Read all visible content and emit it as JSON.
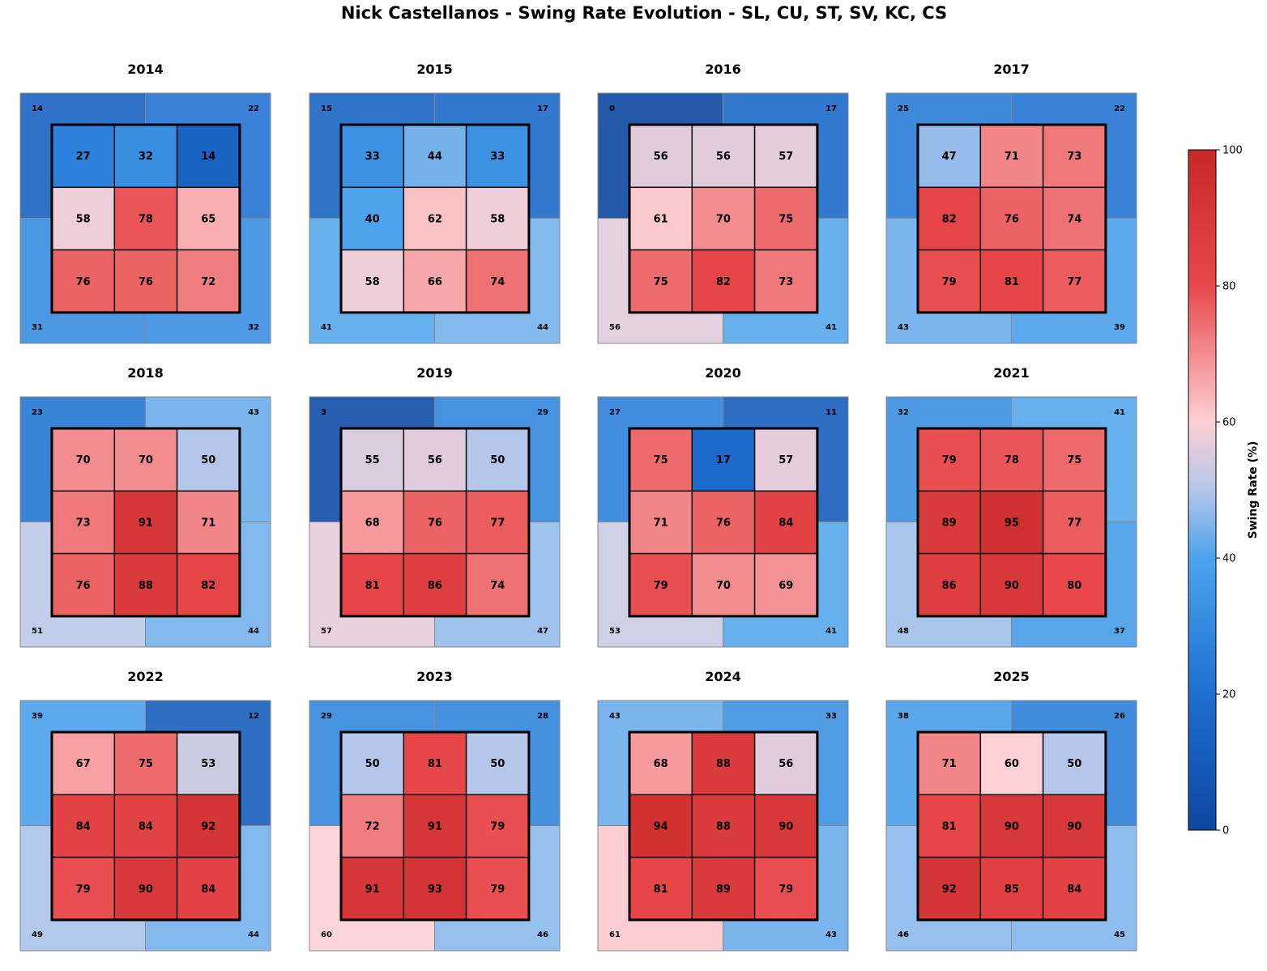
{
  "title": "Nick Castellanos - Swing Rate Evolution - SL, CU, ST, SV, KC, CS",
  "colorbar": {
    "label": "Swing Rate (%)",
    "ticks": [
      0,
      20,
      40,
      60,
      80,
      100
    ]
  },
  "chart_data": {
    "type": "heatmap",
    "value_range": [
      0,
      100
    ],
    "colors": {
      "low": "#0d47a1",
      "mid": "#f7f7f7",
      "high": "#c62828"
    },
    "panels": [
      {
        "year": "2014",
        "outer": [
          14,
          22,
          31,
          32
        ],
        "zone": [
          [
            27,
            32,
            14
          ],
          [
            58,
            78,
            65
          ],
          [
            76,
            76,
            72
          ]
        ]
      },
      {
        "year": "2015",
        "outer": [
          15,
          17,
          41,
          44
        ],
        "zone": [
          [
            33,
            44,
            33
          ],
          [
            40,
            62,
            58
          ],
          [
            58,
            66,
            74
          ]
        ]
      },
      {
        "year": "2016",
        "outer": [
          0,
          17,
          56,
          41
        ],
        "zone": [
          [
            56,
            56,
            57
          ],
          [
            61,
            70,
            75
          ],
          [
            75,
            82,
            73
          ]
        ]
      },
      {
        "year": "2017",
        "outer": [
          25,
          22,
          43,
          39
        ],
        "zone": [
          [
            47,
            71,
            73
          ],
          [
            82,
            76,
            74
          ],
          [
            79,
            81,
            77
          ]
        ]
      },
      {
        "year": "2018",
        "outer": [
          23,
          43,
          51,
          44
        ],
        "zone": [
          [
            70,
            70,
            50
          ],
          [
            73,
            91,
            71
          ],
          [
            76,
            88,
            82
          ]
        ]
      },
      {
        "year": "2019",
        "outer": [
          3,
          29,
          57,
          47
        ],
        "zone": [
          [
            55,
            56,
            50
          ],
          [
            68,
            76,
            77
          ],
          [
            81,
            86,
            74
          ]
        ]
      },
      {
        "year": "2020",
        "outer": [
          27,
          11,
          53,
          41
        ],
        "zone": [
          [
            75,
            17,
            57
          ],
          [
            71,
            76,
            84
          ],
          [
            79,
            70,
            69
          ]
        ]
      },
      {
        "year": "2021",
        "outer": [
          32,
          41,
          48,
          37
        ],
        "zone": [
          [
            79,
            78,
            75
          ],
          [
            89,
            95,
            77
          ],
          [
            86,
            90,
            80
          ]
        ]
      },
      {
        "year": "2022",
        "outer": [
          39,
          12,
          49,
          44
        ],
        "zone": [
          [
            67,
            75,
            53
          ],
          [
            84,
            84,
            92
          ],
          [
            79,
            90,
            84
          ]
        ]
      },
      {
        "year": "2023",
        "outer": [
          29,
          28,
          60,
          46
        ],
        "zone": [
          [
            50,
            81,
            50
          ],
          [
            72,
            91,
            79
          ],
          [
            91,
            93,
            79
          ]
        ]
      },
      {
        "year": "2024",
        "outer": [
          43,
          33,
          61,
          43
        ],
        "zone": [
          [
            68,
            88,
            56
          ],
          [
            94,
            88,
            90
          ],
          [
            81,
            89,
            79
          ]
        ]
      },
      {
        "year": "2025",
        "outer": [
          38,
          26,
          46,
          45
        ],
        "zone": [
          [
            71,
            60,
            50
          ],
          [
            81,
            90,
            90
          ],
          [
            92,
            85,
            84
          ]
        ]
      }
    ]
  }
}
